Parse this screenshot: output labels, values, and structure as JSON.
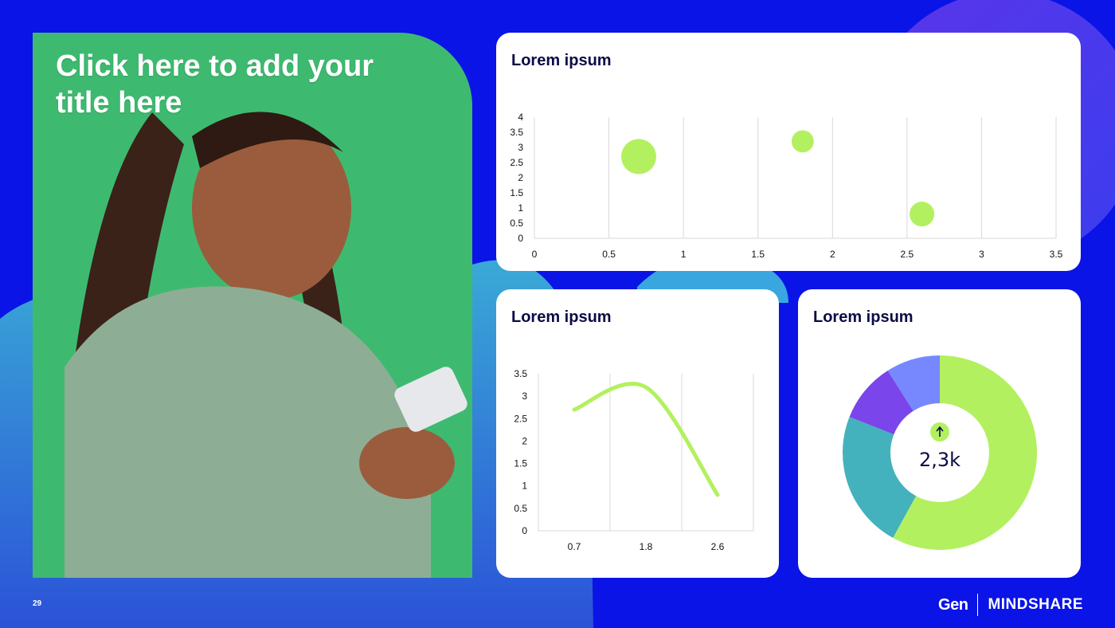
{
  "slide": {
    "title": "Click here to add your title here",
    "page_number": "29"
  },
  "brand": {
    "left": "Gen",
    "right": "MINDSHARE"
  },
  "colors": {
    "background": "#0a14e6",
    "accent_green": "#b3f05f",
    "teal": "#43b2bd",
    "purple": "#7a45ea",
    "periwinkle": "#7788ff",
    "navy_text": "#0b0c45"
  },
  "photo": {
    "icon": "smiling-woman-with-phone-photo"
  },
  "cards": {
    "bubble": {
      "title": "Lorem ipsum"
    },
    "line": {
      "title": "Lorem ipsum"
    },
    "donut": {
      "title": "Lorem ipsum",
      "center_value": "2,3k",
      "center_icon": "arrow-up-icon"
    }
  },
  "chart_data": [
    {
      "type": "scatter",
      "subtype": "bubble",
      "title": "Lorem ipsum",
      "xlim": [
        0,
        3.5
      ],
      "ylim": [
        0,
        4
      ],
      "x_ticks": [
        "0",
        "0.5",
        "1",
        "1.5",
        "2",
        "2.5",
        "3",
        "3.5"
      ],
      "y_ticks": [
        "0",
        "0.5",
        "1",
        "1.5",
        "2",
        "2.5",
        "3",
        "3.5",
        "4"
      ],
      "grid": "vertical",
      "points": [
        {
          "x": 0.7,
          "y": 2.7,
          "size": 10
        },
        {
          "x": 1.8,
          "y": 3.2,
          "size": 4
        },
        {
          "x": 2.6,
          "y": 0.8,
          "size": 5
        }
      ]
    },
    {
      "type": "line",
      "title": "Lorem ipsum",
      "categories": [
        "0.7",
        "1.8",
        "2.6"
      ],
      "ylim": [
        0,
        3.5
      ],
      "y_ticks": [
        "0",
        "0.5",
        "1",
        "1.5",
        "2",
        "2.5",
        "3",
        "3.5"
      ],
      "grid": "vertical",
      "smooth": true,
      "series": [
        {
          "values": [
            2.7,
            3.2,
            0.8
          ]
        }
      ]
    },
    {
      "type": "pie",
      "subtype": "donut",
      "title": "Lorem ipsum",
      "center_label": "2,3k",
      "slices": [
        {
          "value": 58,
          "color": "#b3f05f"
        },
        {
          "value": 23,
          "color": "#43b2bd"
        },
        {
          "value": 10,
          "color": "#7a45ea"
        },
        {
          "value": 9,
          "color": "#7788ff"
        }
      ]
    }
  ]
}
